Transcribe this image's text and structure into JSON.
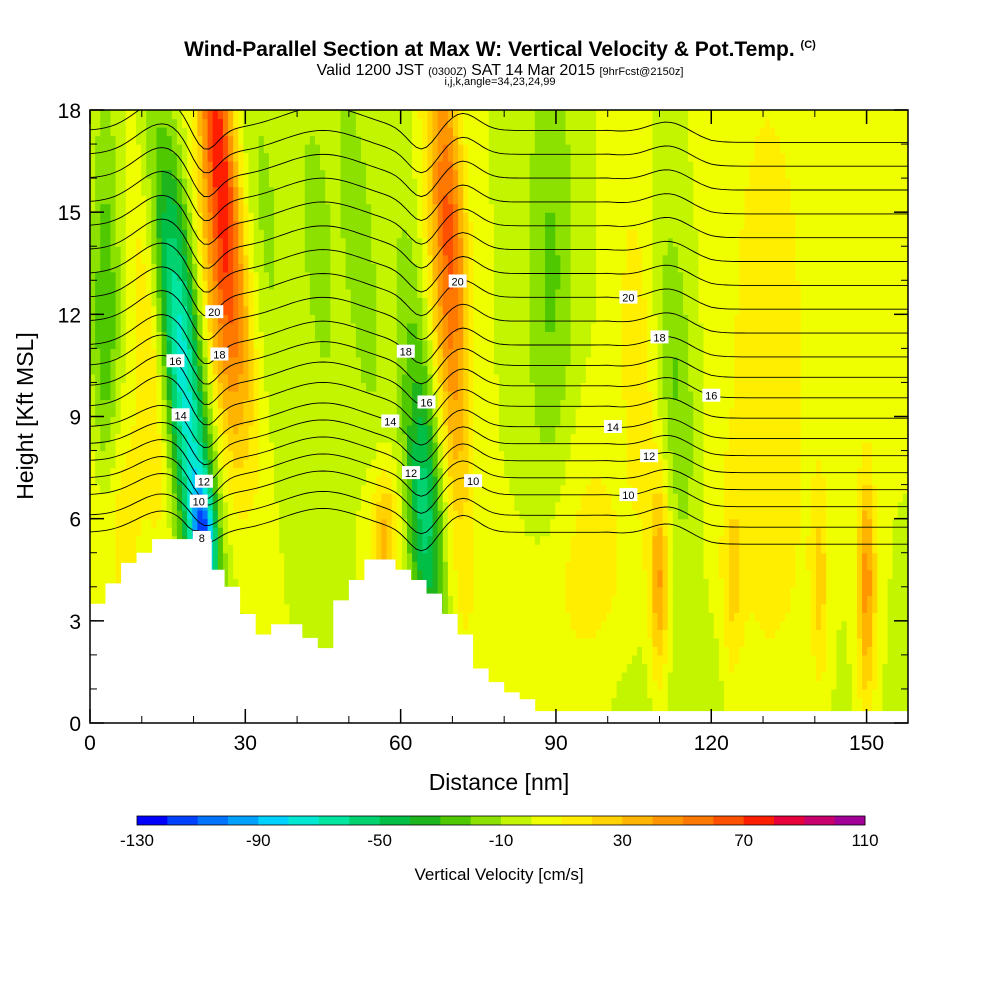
{
  "title": {
    "main": "Wind-Parallel Section at Max W: Vertical Velocity & Pot.Temp.",
    "units_tag": "(C)",
    "valid_prefix": "Valid 1200 JST",
    "valid_utc": "(0300Z)",
    "valid_date": "SAT 14 Mar 2015",
    "forecast": "[9hrFcst@2150z]",
    "indices": "i,j,k,angle=34,23,24,99"
  },
  "chart_data": {
    "type": "heatmap",
    "xlabel": "Distance [nm]",
    "ylabel": "Height [Kft MSL]",
    "xlim": [
      0,
      158
    ],
    "ylim": [
      0,
      18
    ],
    "x_ticks": [
      0,
      30,
      60,
      90,
      120,
      150
    ],
    "y_ticks": [
      0,
      3,
      6,
      9,
      12,
      15,
      18
    ],
    "x_minor_step": 10,
    "y_minor_step": 1,
    "colorbar": {
      "title": "Vertical Velocity [cm/s]",
      "min": -130,
      "max": 110,
      "step": 10,
      "tick_labels": [
        "-130",
        "-90",
        "-50",
        "-10",
        "30",
        "70",
        "110"
      ],
      "colors": [
        "#0000ff",
        "#0040ff",
        "#0073ff",
        "#00a0ff",
        "#00d2ff",
        "#00e8d2",
        "#00e6a0",
        "#00d270",
        "#00be46",
        "#1eb41e",
        "#50c800",
        "#8ce100",
        "#c3f500",
        "#f0ff00",
        "#ffee00",
        "#ffd200",
        "#ffb400",
        "#ff9600",
        "#ff7800",
        "#ff5000",
        "#ff1e00",
        "#e6003c",
        "#c8006e",
        "#a00096",
        "#7800a0"
      ]
    },
    "background_value": 0,
    "velocity_features": [
      {
        "x": 25,
        "y": 17,
        "sx": 2.2,
        "sy": 4.5,
        "tilt": -0.65,
        "value": 70
      },
      {
        "x": 25,
        "y": 12,
        "sx": 2.6,
        "sy": 3.5,
        "tilt": -0.65,
        "value": 40
      },
      {
        "x": 19,
        "y": 8,
        "sx": 2.8,
        "sy": 4.5,
        "tilt": -0.65,
        "value": -60
      },
      {
        "x": 22,
        "y": 5.5,
        "sx": 1.6,
        "sy": 1.2,
        "tilt": -0.3,
        "value": -70
      },
      {
        "x": 17,
        "y": 13,
        "sx": 3,
        "sy": 3.5,
        "tilt": -0.65,
        "value": -35
      },
      {
        "x": 3,
        "y": 11,
        "sx": 2,
        "sy": 5,
        "tilt": 0,
        "value": -30
      },
      {
        "x": 12,
        "y": 11,
        "sx": 2.5,
        "sy": 4,
        "tilt": -0.4,
        "value": 25
      },
      {
        "x": 34,
        "y": 15,
        "sx": 2.5,
        "sy": 4,
        "tilt": -0.5,
        "value": -12
      },
      {
        "x": 44,
        "y": 14,
        "sx": 2.8,
        "sy": 4,
        "tilt": -0.4,
        "value": -14
      },
      {
        "x": 52,
        "y": 14,
        "sx": 2.2,
        "sy": 4,
        "tilt": -0.5,
        "value": -18
      },
      {
        "x": 62,
        "y": 11,
        "sx": 2.8,
        "sy": 4,
        "tilt": -0.3,
        "value": -15
      },
      {
        "x": 65,
        "y": 6,
        "sx": 2.5,
        "sy": 3,
        "tilt": -0.2,
        "value": -50
      },
      {
        "x": 69,
        "y": 13,
        "sx": 2.6,
        "sy": 5.5,
        "tilt": -0.3,
        "value": 50
      },
      {
        "x": 70,
        "y": 15,
        "sx": 1.8,
        "sy": 2.5,
        "tilt": -0.3,
        "value": 20
      },
      {
        "x": 57,
        "y": 5.5,
        "sx": 2,
        "sy": 1.5,
        "tilt": 0,
        "value": 35
      },
      {
        "x": 89,
        "y": 13,
        "sx": 3.5,
        "sy": 5,
        "tilt": 0,
        "value": -22
      },
      {
        "x": 113,
        "y": 10,
        "sx": 2.5,
        "sy": 3.5,
        "tilt": -0.3,
        "value": -22
      },
      {
        "x": 106,
        "y": 11,
        "sx": 3,
        "sy": 4,
        "tilt": -0.3,
        "value": 15
      },
      {
        "x": 131,
        "y": 9,
        "sx": 6,
        "sy": 8,
        "tilt": 0,
        "value": 18
      },
      {
        "x": 96,
        "y": 5,
        "sx": 6,
        "sy": 3,
        "tilt": 0,
        "value": 14
      },
      {
        "x": 110,
        "y": 1.2,
        "sx": 20,
        "sy": 1.6,
        "tilt": 0,
        "value": -8
      },
      {
        "x": 110,
        "y": 4,
        "sx": 1.3,
        "sy": 2.2,
        "tilt": 0,
        "value": 38
      },
      {
        "x": 150,
        "y": 4,
        "sx": 1.3,
        "sy": 2.5,
        "tilt": 0,
        "value": 45
      },
      {
        "x": 141,
        "y": 4,
        "sx": 1.2,
        "sy": 2.2,
        "tilt": 0,
        "value": 22
      },
      {
        "x": 124,
        "y": 4,
        "sx": 1.4,
        "sy": 2.2,
        "tilt": 0,
        "value": 18
      },
      {
        "x": 90,
        "y": 2,
        "sx": 14,
        "sy": 2,
        "tilt": 0,
        "value": 6
      },
      {
        "x": 4,
        "y": 6,
        "sx": 4,
        "sy": 2.5,
        "tilt": 0,
        "value": 22
      }
    ],
    "terrain": {
      "x": [
        0,
        3,
        6,
        9,
        12,
        15,
        18,
        21,
        23.5,
        26,
        29,
        32,
        35,
        38,
        41,
        44,
        47,
        50,
        53,
        56,
        59,
        62,
        65,
        68,
        71,
        74,
        77,
        80,
        83,
        86,
        158
      ],
      "height": [
        3.5,
        4.1,
        4.7,
        5.0,
        5.4,
        5.4,
        5.4,
        5.4,
        4.5,
        4.0,
        3.2,
        2.6,
        2.9,
        2.9,
        2.5,
        2.2,
        3.6,
        4.2,
        4.8,
        4.8,
        4.5,
        4.2,
        3.8,
        3.2,
        2.6,
        1.6,
        1.2,
        0.9,
        0.7,
        0.35,
        0.35
      ]
    },
    "theta_isolines": [
      {
        "value": 8,
        "y0": 5.6,
        "label_x": 21.6
      },
      {
        "value": 9,
        "y0": 6.1
      },
      {
        "value": 10,
        "y0": 6.7,
        "label_x": 21,
        "label_x2": 74,
        "label_x3": 104
      },
      {
        "value": 11,
        "y0": 7.2
      },
      {
        "value": 12,
        "y0": 7.7,
        "label_x": 22,
        "label_x2": 62,
        "label_x3": 108
      },
      {
        "value": 13,
        "y0": 8.2
      },
      {
        "value": 14,
        "y0": 8.7,
        "label_x": 17.5,
        "label_x2": 58,
        "label_x3": 101
      },
      {
        "value": 15,
        "y0": 9.3
      },
      {
        "value": 16,
        "y0": 9.9,
        "label_x": 16.5,
        "label_x2": 65,
        "label_x3": 120
      },
      {
        "value": 17,
        "y0": 10.5
      },
      {
        "value": 18,
        "y0": 11.1,
        "label_x": 25,
        "label_x2": 61,
        "label_x3": 110
      },
      {
        "value": 19,
        "y0": 11.8
      },
      {
        "value": 20,
        "y0": 12.5,
        "label_x": 24,
        "label_x2": 71,
        "label_x3": 104
      },
      {
        "value": 21,
        "y0": 13.2
      },
      {
        "value": 22,
        "y0": 13.9
      },
      {
        "value": 23,
        "y0": 14.6
      },
      {
        "value": 24,
        "y0": 15.3
      },
      {
        "value": 25,
        "y0": 16.0
      },
      {
        "value": 26,
        "y0": 16.7
      },
      {
        "value": 27,
        "y0": 17.4
      }
    ]
  }
}
